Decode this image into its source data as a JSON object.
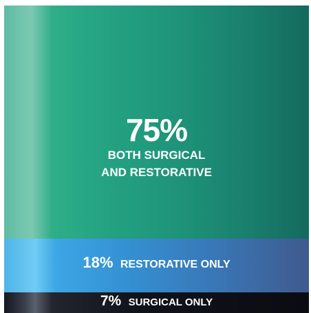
{
  "chart_data": {
    "type": "bar",
    "stacked": true,
    "orientation": "vertical-stack",
    "categories": [
      "BOTH SURGICAL AND RESTORATIVE",
      "RESTORATIVE ONLY",
      "SURGICAL ONLY"
    ],
    "values": [
      75,
      18,
      7
    ],
    "value_labels": [
      "75%",
      "18%",
      "7%"
    ],
    "description_lines": {
      "both": [
        "BOTH SURGICAL",
        "AND RESTORATIVE"
      ],
      "restorative": "RESTORATIVE ONLY",
      "surgical": "SURGICAL ONLY"
    },
    "colors": [
      "#1f9a7c",
      "#3a8fd0",
      "#111318"
    ],
    "title": "",
    "xlabel": "",
    "ylabel": "",
    "ylim": [
      0,
      100
    ],
    "grid": false
  }
}
